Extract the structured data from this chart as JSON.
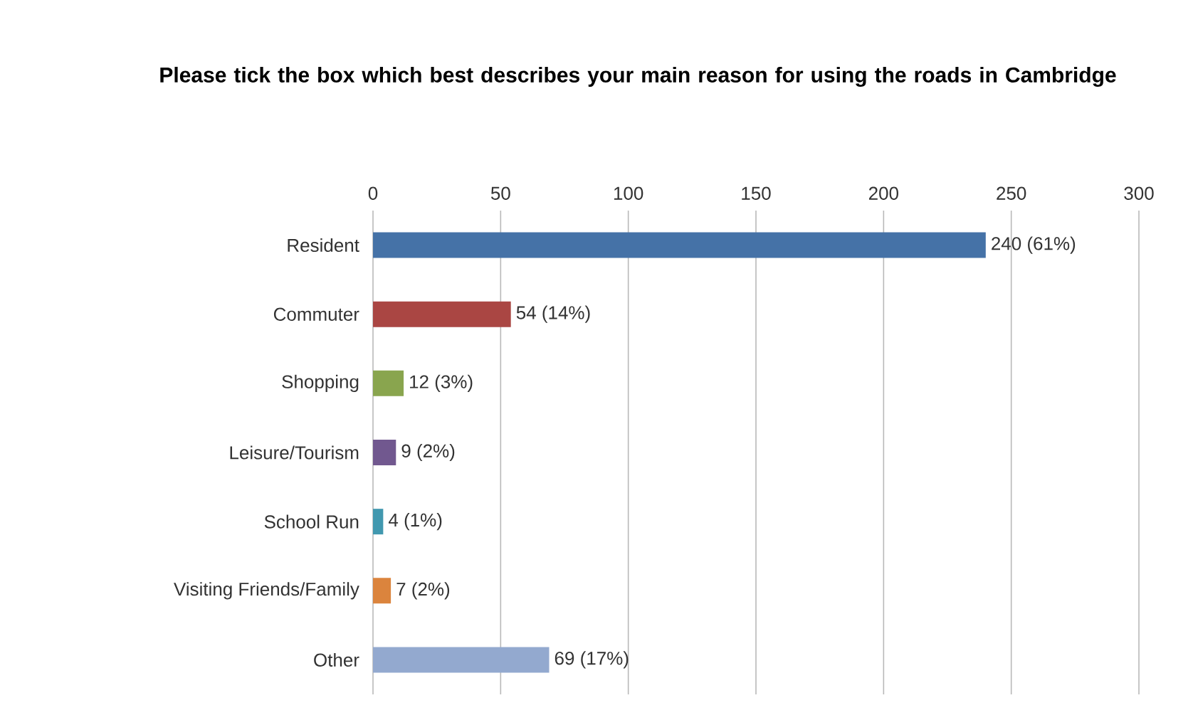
{
  "chart_data": {
    "type": "bar",
    "orientation": "horizontal",
    "title": "Please tick the box which best describes your main reason for using the roads in Cambridge",
    "categories": [
      "Resident",
      "Commuter",
      "Shopping",
      "Leisure/Tourism",
      "School Run",
      "Visiting Friends/Family",
      "Other"
    ],
    "values": [
      240,
      54,
      12,
      9,
      4,
      7,
      69
    ],
    "colors": [
      "#4572a7",
      "#aa4643",
      "#89a54e",
      "#71588f",
      "#4198af",
      "#db843d",
      "#93a9cf"
    ],
    "value_labels": [
      "240 (61%)",
      "54 (14%)",
      "12 (3%)",
      "9 (2%)",
      "4 (1%)",
      "7 (2%)",
      "69 (17%)"
    ],
    "xlim": [
      0,
      300
    ],
    "xticks": [
      0,
      50,
      100,
      150,
      200,
      250,
      300
    ],
    "grid": "x"
  }
}
